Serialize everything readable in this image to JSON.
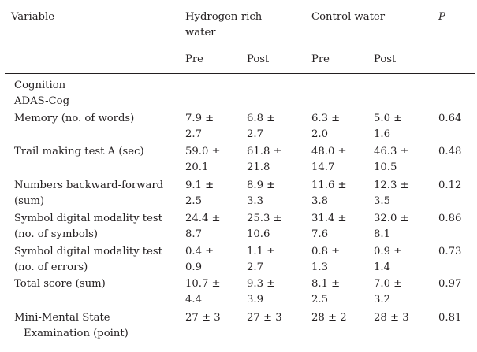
{
  "header": {
    "variable": "Variable",
    "group_h2_line1": "Hydrogen-rich",
    "group_h2_line2": "water",
    "group_control": "Control water",
    "p": "P",
    "pre": "Pre",
    "post": "Post"
  },
  "sections": {
    "cognition": "Cognition",
    "adas": "ADAS-Cog"
  },
  "rows": [
    {
      "label": [
        "Memory (no. of words)"
      ],
      "h2_pre": [
        "7.9 ±",
        "2.7"
      ],
      "h2_post": [
        "6.8 ±",
        "2.7"
      ],
      "c_pre": [
        "6.3 ±",
        "2.0"
      ],
      "c_post": [
        "5.0 ±",
        "1.6"
      ],
      "p": "0.64"
    },
    {
      "label": [
        "Trail making test A (sec)"
      ],
      "h2_pre": [
        "59.0 ±",
        "20.1"
      ],
      "h2_post": [
        "61.8 ±",
        "21.8"
      ],
      "c_pre": [
        "48.0 ±",
        "14.7"
      ],
      "c_post": [
        "46.3 ±",
        "10.5"
      ],
      "p": "0.48"
    },
    {
      "label": [
        "Numbers backward-forward",
        "(sum)"
      ],
      "h2_pre": [
        "9.1 ±",
        "2.5"
      ],
      "h2_post": [
        "8.9 ±",
        "3.3"
      ],
      "c_pre": [
        "11.6 ±",
        "3.8"
      ],
      "c_post": [
        "12.3 ±",
        "3.5"
      ],
      "p": "0.12"
    },
    {
      "label": [
        "Symbol digital modality test",
        "(no. of symbols)"
      ],
      "h2_pre": [
        "24.4 ±",
        "8.7"
      ],
      "h2_post": [
        "25.3 ±",
        "10.6"
      ],
      "c_pre": [
        "31.4 ±",
        "7.6"
      ],
      "c_post": [
        "32.0 ±",
        "8.1"
      ],
      "p": "0.86"
    },
    {
      "label": [
        "Symbol digital modality test",
        "(no. of errors)"
      ],
      "h2_pre": [
        "0.4 ±",
        "0.9"
      ],
      "h2_post": [
        "1.1 ±",
        "2.7"
      ],
      "c_pre": [
        "0.8 ±",
        "1.3"
      ],
      "c_post": [
        "0.9 ±",
        "1.4"
      ],
      "p": "0.73"
    },
    {
      "label": [
        "Total score (sum)"
      ],
      "h2_pre": [
        "10.7 ±",
        "4.4"
      ],
      "h2_post": [
        "9.3 ±",
        "3.9"
      ],
      "c_pre": [
        "8.1 ±",
        "2.5"
      ],
      "c_post": [
        "7.0 ±",
        "3.2"
      ],
      "p": "0.97"
    },
    {
      "label": [
        "Mini-Mental State",
        "Examination (point)"
      ],
      "h2_pre": [
        "27 ± 3"
      ],
      "h2_post": [
        "27 ± 3"
      ],
      "c_pre": [
        "28 ± 2"
      ],
      "c_post": [
        "28 ± 3"
      ],
      "p": "0.81"
    }
  ]
}
